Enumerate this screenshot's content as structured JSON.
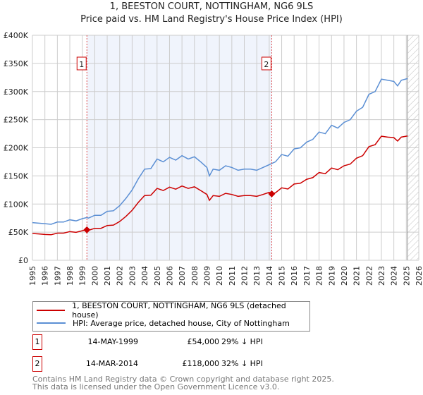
{
  "chart_data": {
    "type": "line",
    "title": "1, BEESTON COURT, NOTTINGHAM, NG6 9LS",
    "subtitle": "Price paid vs. HM Land Registry's House Price Index (HPI)",
    "xlim": [
      1995,
      2026
    ],
    "ylim": [
      0,
      400000
    ],
    "y_ticks": [
      {
        "v": 0,
        "label": "£0"
      },
      {
        "v": 50000,
        "label": "£50K"
      },
      {
        "v": 100000,
        "label": "£100K"
      },
      {
        "v": 150000,
        "label": "£150K"
      },
      {
        "v": 200000,
        "label": "£200K"
      },
      {
        "v": 250000,
        "label": "£250K"
      },
      {
        "v": 300000,
        "label": "£300K"
      },
      {
        "v": 350000,
        "label": "£350K"
      },
      {
        "v": 400000,
        "label": "£400K"
      }
    ],
    "x_ticks": [
      "1995",
      "1996",
      "1997",
      "1998",
      "1999",
      "2000",
      "2001",
      "2002",
      "2003",
      "2004",
      "2005",
      "2006",
      "2007",
      "2008",
      "2009",
      "2010",
      "2011",
      "2012",
      "2013",
      "2014",
      "2015",
      "2016",
      "2017",
      "2018",
      "2019",
      "2020",
      "2021",
      "2022",
      "2023",
      "2024",
      "2025",
      "2026"
    ],
    "grid": true,
    "shaded_range": [
      1999.37,
      2014.2
    ],
    "forecast_hatch_from": 2025.1,
    "x": [
      1995,
      1995.5,
      1996,
      1996.5,
      1997,
      1997.5,
      1998,
      1998.5,
      1999,
      1999.37,
      1999.5,
      2000,
      2000.5,
      2001,
      2001.5,
      2002,
      2002.5,
      2003,
      2003.5,
      2004,
      2004.5,
      2005,
      2005.5,
      2006,
      2006.5,
      2007,
      2007.5,
      2008,
      2008.5,
      2009,
      2009.2,
      2009.5,
      2010,
      2010.5,
      2011,
      2011.5,
      2012,
      2012.5,
      2013,
      2013.5,
      2014,
      2014.2,
      2014.5,
      2015,
      2015.5,
      2016,
      2016.5,
      2017,
      2017.5,
      2018,
      2018.5,
      2019,
      2019.5,
      2020,
      2020.5,
      2021,
      2021.5,
      2022,
      2022.5,
      2023,
      2023.5,
      2024,
      2024.3,
      2024.6,
      2025.1
    ],
    "series": [
      {
        "name": "1, BEESTON COURT, NOTTINGHAM, NG6 9LS (detached house)",
        "color": "#cc0000",
        "values": [
          47600,
          46900,
          46000,
          45400,
          48300,
          48300,
          51000,
          49700,
          52500,
          54000,
          53300,
          56800,
          56800,
          61800,
          62500,
          68900,
          78000,
          88800,
          103000,
          115000,
          115700,
          127800,
          124000,
          130000,
          126400,
          132000,
          127800,
          130600,
          124000,
          117000,
          106500,
          115000,
          113600,
          119000,
          117000,
          113600,
          115000,
          115000,
          113600,
          117000,
          120700,
          118000,
          120000,
          128800,
          126700,
          135600,
          137000,
          143900,
          147000,
          156000,
          154000,
          164000,
          161000,
          168000,
          171000,
          181500,
          186000,
          202000,
          205500,
          220600,
          219000,
          218000,
          212000,
          219000,
          221000
        ]
      },
      {
        "name": "HPI: Average price, detached house, City of Nottingham",
        "color": "#5b8fd4",
        "values": [
          67000,
          66000,
          65000,
          64000,
          68000,
          68000,
          72000,
          70000,
          74000,
          76000,
          75000,
          80000,
          80000,
          87000,
          88000,
          97000,
          110000,
          125000,
          145000,
          162000,
          163000,
          180000,
          175000,
          183000,
          178000,
          186000,
          180000,
          184000,
          175000,
          165000,
          150000,
          162000,
          160000,
          168000,
          165000,
          160000,
          162000,
          162000,
          160000,
          165000,
          170000,
          172000,
          175000,
          188000,
          185000,
          198000,
          200000,
          210000,
          215000,
          228000,
          225000,
          240000,
          235000,
          245000,
          250000,
          265000,
          272000,
          295000,
          300000,
          322000,
          320000,
          318000,
          310000,
          320000,
          323000
        ]
      }
    ],
    "sales": [
      {
        "num": "1",
        "x": 1999.37,
        "value": 54000,
        "date": "14-MAY-1999",
        "price": "£54,000",
        "hpi": "29% ↓ HPI"
      },
      {
        "num": "2",
        "x": 2014.2,
        "value": 118000,
        "date": "14-MAR-2014",
        "price": "£118,000",
        "hpi": "32% ↓ HPI"
      }
    ],
    "legend": [
      "1, BEESTON COURT, NOTTINGHAM, NG6 9LS (detached house)",
      "HPI: Average price, detached house, City of Nottingham"
    ],
    "footer": [
      "Contains HM Land Registry data © Crown copyright and database right 2025.",
      "This data is licensed under the Open Government Licence v3.0."
    ]
  }
}
